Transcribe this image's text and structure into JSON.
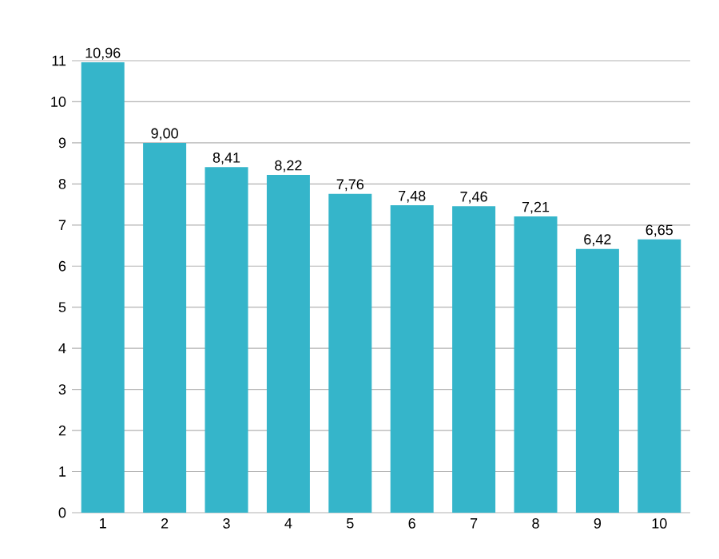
{
  "chart_data": {
    "type": "bar",
    "categories": [
      "1",
      "2",
      "3",
      "4",
      "5",
      "6",
      "7",
      "8",
      "9",
      "10"
    ],
    "values": [
      10.96,
      9.0,
      8.41,
      8.22,
      7.76,
      7.48,
      7.46,
      7.21,
      6.42,
      6.65
    ],
    "value_labels": [
      "10,96",
      "9,00",
      "8,41",
      "8,22",
      "7,76",
      "7,48",
      "7,46",
      "7,21",
      "6,42",
      "6,65"
    ],
    "color": "#35b5ca",
    "ylim": [
      0,
      11
    ],
    "yticks": [
      0,
      1,
      2,
      3,
      4,
      5,
      6,
      7,
      8,
      9,
      10,
      11
    ],
    "grid": "y"
  }
}
